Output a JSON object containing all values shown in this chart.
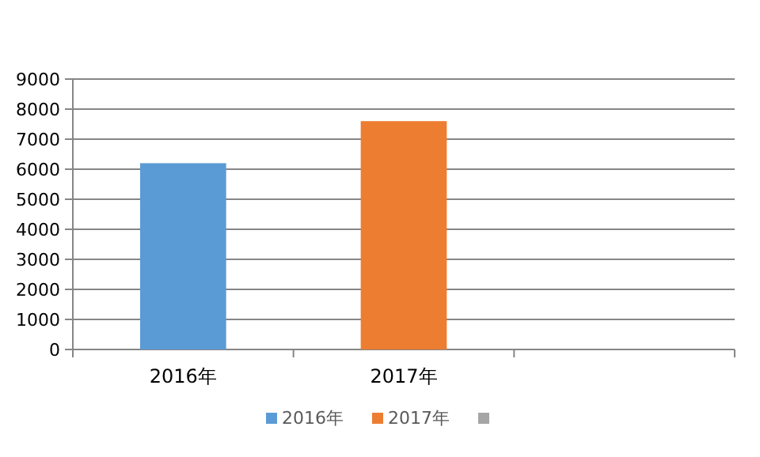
{
  "chart_data": {
    "type": "bar",
    "categories": [
      "2016年",
      "2017年",
      null
    ],
    "series": [
      {
        "name": "2016年",
        "color": "#5b9bd5",
        "values": [
          6200,
          null,
          null
        ]
      },
      {
        "name": "2017年",
        "color": "#ed7d31",
        "values": [
          null,
          7600,
          null
        ]
      },
      {
        "color": "#a5a5a5",
        "values": [
          null,
          null,
          null
        ]
      }
    ],
    "ylim": [
      0,
      9000
    ],
    "yticks": [
      0,
      1000,
      2000,
      3000,
      4000,
      5000,
      6000,
      7000,
      8000,
      9000
    ],
    "grid": "y",
    "legend": "bottom"
  }
}
